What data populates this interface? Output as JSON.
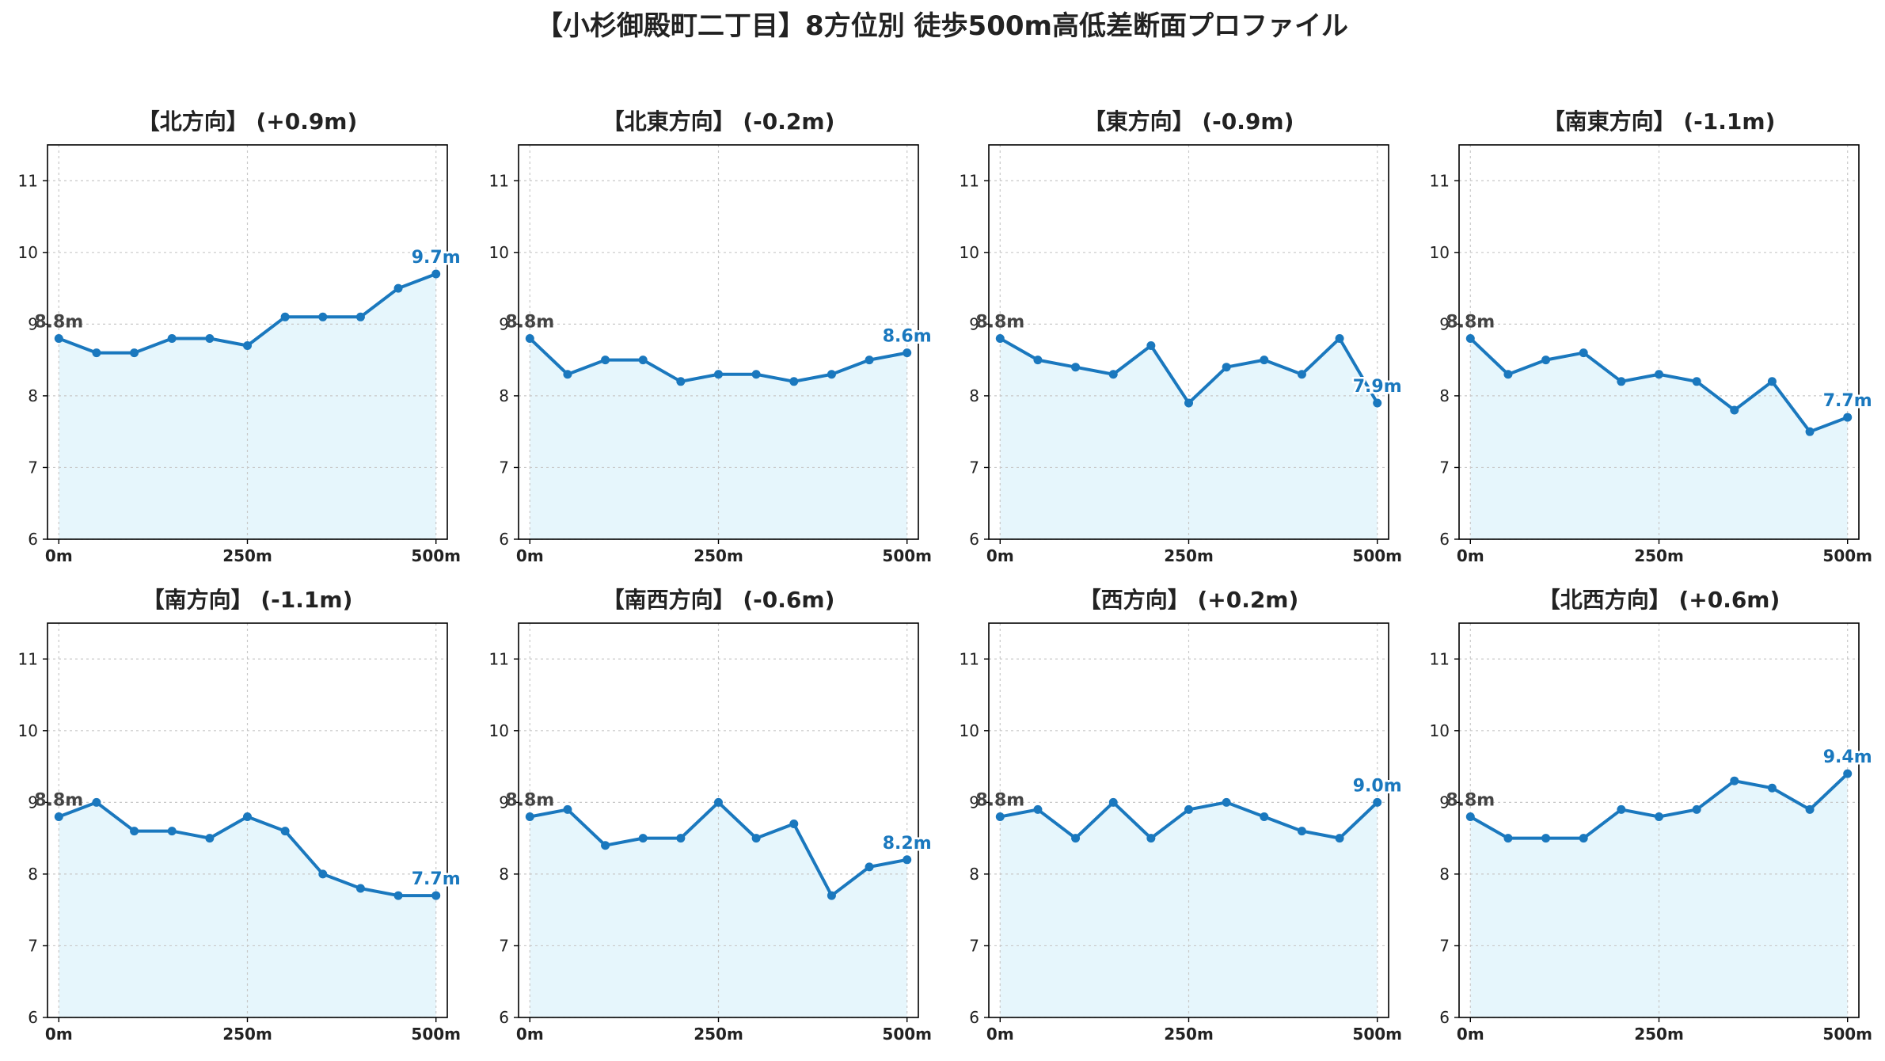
{
  "title": "【小杉御殿町二丁目】8方位別 徒歩500m高低差断面プロファイル",
  "colors": {
    "line": "#1a78be",
    "fill": "#e6f6fc",
    "start_label": "#444444",
    "end_label": "#1a78be",
    "grid": "#c8c8c8"
  },
  "chart_data": [
    {
      "type": "line",
      "title": "【北方向】 (+0.9m)",
      "x": [
        0,
        50,
        100,
        150,
        200,
        250,
        300,
        350,
        400,
        450,
        500
      ],
      "y": [
        8.8,
        8.6,
        8.6,
        8.8,
        8.8,
        8.7,
        9.1,
        9.1,
        9.1,
        9.5,
        9.7
      ],
      "start_label": "8.8m",
      "end_label": "9.7m",
      "xticks": [
        "0m",
        "250m",
        "500m"
      ],
      "yticks": [
        6,
        7,
        8,
        9,
        10,
        11
      ],
      "ylim": [
        6,
        11.5
      ],
      "xlim": [
        -15,
        515
      ],
      "grid": true
    },
    {
      "type": "line",
      "title": "【北東方向】 (-0.2m)",
      "x": [
        0,
        50,
        100,
        150,
        200,
        250,
        300,
        350,
        400,
        450,
        500
      ],
      "y": [
        8.8,
        8.3,
        8.5,
        8.5,
        8.2,
        8.3,
        8.3,
        8.2,
        8.3,
        8.5,
        8.6
      ],
      "start_label": "8.8m",
      "end_label": "8.6m",
      "xticks": [
        "0m",
        "250m",
        "500m"
      ],
      "yticks": [
        6,
        7,
        8,
        9,
        10,
        11
      ],
      "ylim": [
        6,
        11.5
      ],
      "xlim": [
        -15,
        515
      ],
      "grid": true
    },
    {
      "type": "line",
      "title": "【東方向】 (-0.9m)",
      "x": [
        0,
        50,
        100,
        150,
        200,
        250,
        300,
        350,
        400,
        450,
        500
      ],
      "y": [
        8.8,
        8.5,
        8.4,
        8.3,
        8.7,
        7.9,
        8.4,
        8.5,
        8.3,
        8.8,
        7.9
      ],
      "start_label": "8.8m",
      "end_label": "7.9m",
      "xticks": [
        "0m",
        "250m",
        "500m"
      ],
      "yticks": [
        6,
        7,
        8,
        9,
        10,
        11
      ],
      "ylim": [
        6,
        11.5
      ],
      "xlim": [
        -15,
        515
      ],
      "grid": true
    },
    {
      "type": "line",
      "title": "【南東方向】 (-1.1m)",
      "x": [
        0,
        50,
        100,
        150,
        200,
        250,
        300,
        350,
        400,
        450,
        500
      ],
      "y": [
        8.8,
        8.3,
        8.5,
        8.6,
        8.2,
        8.3,
        8.2,
        7.8,
        8.2,
        7.5,
        7.7
      ],
      "start_label": "8.8m",
      "end_label": "7.7m",
      "xticks": [
        "0m",
        "250m",
        "500m"
      ],
      "yticks": [
        6,
        7,
        8,
        9,
        10,
        11
      ],
      "ylim": [
        6,
        11.5
      ],
      "xlim": [
        -15,
        515
      ],
      "grid": true
    },
    {
      "type": "line",
      "title": "【南方向】 (-1.1m)",
      "x": [
        0,
        50,
        100,
        150,
        200,
        250,
        300,
        350,
        400,
        450,
        500
      ],
      "y": [
        8.8,
        9.0,
        8.6,
        8.6,
        8.5,
        8.8,
        8.6,
        8.0,
        7.8,
        7.7,
        7.7
      ],
      "start_label": "8.8m",
      "end_label": "7.7m",
      "xticks": [
        "0m",
        "250m",
        "500m"
      ],
      "yticks": [
        6,
        7,
        8,
        9,
        10,
        11
      ],
      "ylim": [
        6,
        11.5
      ],
      "xlim": [
        -15,
        515
      ],
      "grid": true
    },
    {
      "type": "line",
      "title": "【南西方向】 (-0.6m)",
      "x": [
        0,
        50,
        100,
        150,
        200,
        250,
        300,
        350,
        400,
        450,
        500
      ],
      "y": [
        8.8,
        8.9,
        8.4,
        8.5,
        8.5,
        9.0,
        8.5,
        8.7,
        7.7,
        8.1,
        8.2
      ],
      "start_label": "8.8m",
      "end_label": "8.2m",
      "xticks": [
        "0m",
        "250m",
        "500m"
      ],
      "yticks": [
        6,
        7,
        8,
        9,
        10,
        11
      ],
      "ylim": [
        6,
        11.5
      ],
      "xlim": [
        -15,
        515
      ],
      "grid": true
    },
    {
      "type": "line",
      "title": "【西方向】 (+0.2m)",
      "x": [
        0,
        50,
        100,
        150,
        200,
        250,
        300,
        350,
        400,
        450,
        500
      ],
      "y": [
        8.8,
        8.9,
        8.5,
        9.0,
        8.5,
        8.9,
        9.0,
        8.8,
        8.6,
        8.5,
        9.0
      ],
      "start_label": "8.8m",
      "end_label": "9.0m",
      "xticks": [
        "0m",
        "250m",
        "500m"
      ],
      "yticks": [
        6,
        7,
        8,
        9,
        10,
        11
      ],
      "ylim": [
        6,
        11.5
      ],
      "xlim": [
        -15,
        515
      ],
      "grid": true
    },
    {
      "type": "line",
      "title": "【北西方向】 (+0.6m)",
      "x": [
        0,
        50,
        100,
        150,
        200,
        250,
        300,
        350,
        400,
        450,
        500
      ],
      "y": [
        8.8,
        8.5,
        8.5,
        8.5,
        8.9,
        8.8,
        8.9,
        9.3,
        9.2,
        8.9,
        9.4
      ],
      "start_label": "8.8m",
      "end_label": "9.4m",
      "xticks": [
        "0m",
        "250m",
        "500m"
      ],
      "yticks": [
        6,
        7,
        8,
        9,
        10,
        11
      ],
      "ylim": [
        6,
        11.5
      ],
      "xlim": [
        -15,
        515
      ],
      "grid": true
    }
  ]
}
